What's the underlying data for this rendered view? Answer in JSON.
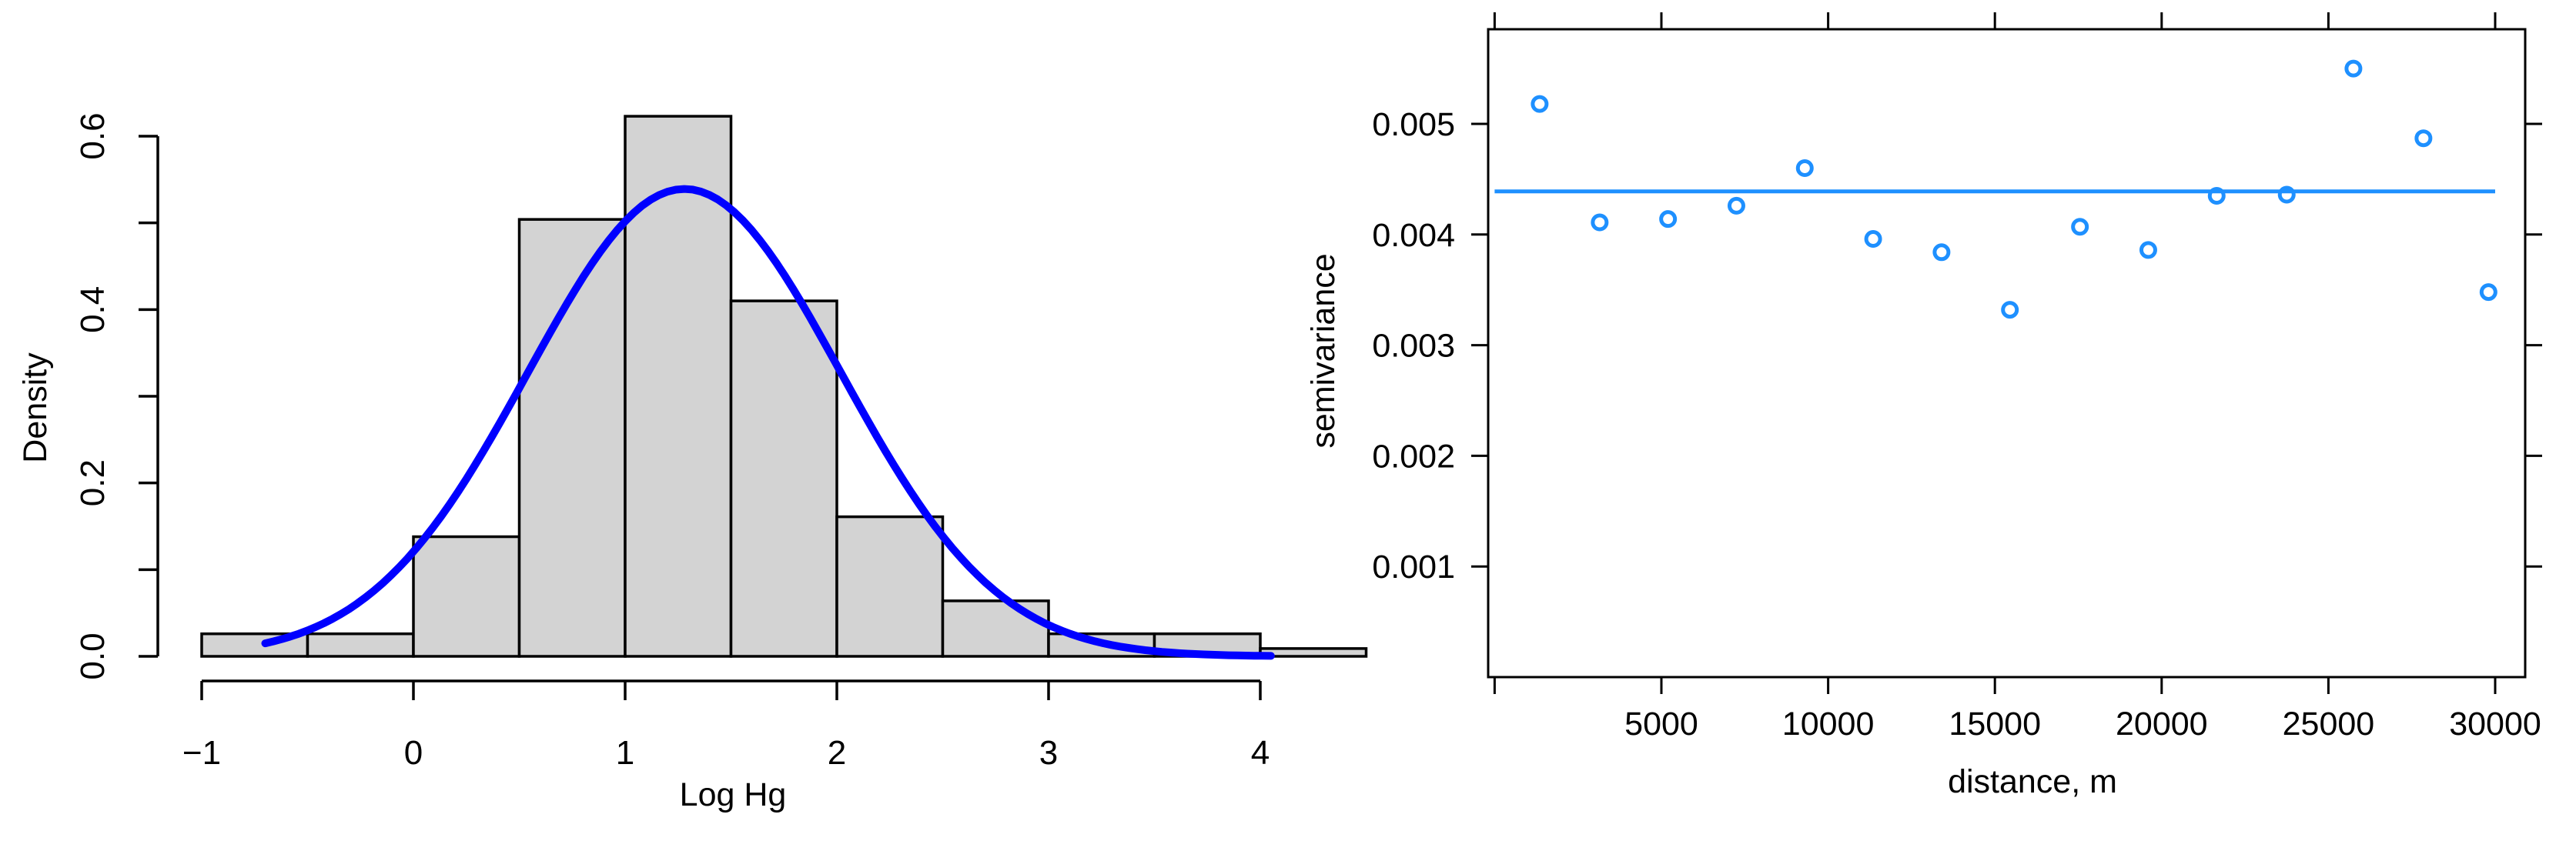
{
  "chart_data": [
    {
      "type": "bar",
      "subtype": "histogram",
      "xlabel": "Log Hg",
      "ylabel": "Density",
      "xlim": [
        -1,
        4.5
      ],
      "ylim": [
        0,
        0.6
      ],
      "x_ticks": [
        "−1",
        "0",
        "1",
        "2",
        "3",
        "4"
      ],
      "x_tick_values": [
        -1,
        0,
        1,
        2,
        3,
        4
      ],
      "y_ticks": [
        "0.0",
        "0.2",
        "0.4",
        "0.6"
      ],
      "y_tick_values": [
        0,
        0.2,
        0.4,
        0.6
      ],
      "bins": [
        {
          "from": -1.0,
          "to": -0.5,
          "density": 0.026
        },
        {
          "from": -0.5,
          "to": 0.0,
          "density": 0.026
        },
        {
          "from": 0.0,
          "to": 0.5,
          "density": 0.138
        },
        {
          "from": 0.5,
          "to": 1.0,
          "density": 0.504
        },
        {
          "from": 1.0,
          "to": 1.5,
          "density": 0.623
        },
        {
          "from": 1.5,
          "to": 2.0,
          "density": 0.41
        },
        {
          "from": 2.0,
          "to": 2.5,
          "density": 0.161
        },
        {
          "from": 2.5,
          "to": 3.0,
          "density": 0.064
        },
        {
          "from": 3.0,
          "to": 3.5,
          "density": 0.026
        },
        {
          "from": 3.5,
          "to": 4.0,
          "density": 0.026
        },
        {
          "from": 4.0,
          "to": 4.5,
          "density": 0.009
        }
      ],
      "bar_fill": "#d3d3d3",
      "curve": {
        "type": "normal density",
        "mean": 1.28,
        "sd": 0.74,
        "x_from": -0.7,
        "x_to": 4.05,
        "color": "#0000ff"
      },
      "grid": false
    },
    {
      "type": "scatter",
      "xlabel": "distance, m",
      "ylabel": "semivariance",
      "xlim": [
        0,
        31200
      ],
      "ylim": [
        0,
        0.0058
      ],
      "x_ticks": [
        "5000",
        "10000",
        "15000",
        "20000",
        "25000",
        "30000"
      ],
      "x_tick_values": [
        5000,
        10000,
        15000,
        20000,
        25000,
        30000
      ],
      "y_ticks": [
        "0.001",
        "0.002",
        "0.003",
        "0.004",
        "0.005"
      ],
      "y_tick_values": [
        0.001,
        0.002,
        0.003,
        0.004,
        0.005
      ],
      "points": [
        {
          "x": 1350,
          "y": 0.00518
        },
        {
          "x": 3150,
          "y": 0.00411
        },
        {
          "x": 5200,
          "y": 0.00414
        },
        {
          "x": 7250,
          "y": 0.00426
        },
        {
          "x": 9300,
          "y": 0.0046
        },
        {
          "x": 11350,
          "y": 0.00396
        },
        {
          "x": 13400,
          "y": 0.00384
        },
        {
          "x": 15450,
          "y": 0.00332
        },
        {
          "x": 17550,
          "y": 0.00407
        },
        {
          "x": 19600,
          "y": 0.00386
        },
        {
          "x": 21650,
          "y": 0.00435
        },
        {
          "x": 23750,
          "y": 0.00436
        },
        {
          "x": 25750,
          "y": 0.0055
        },
        {
          "x": 27850,
          "y": 0.00487
        },
        {
          "x": 29800,
          "y": 0.00348
        }
      ],
      "reference_line": {
        "y": 0.00439,
        "x_from": 0,
        "x_to": 30000
      },
      "color": "#1e90ff",
      "grid": false
    }
  ]
}
